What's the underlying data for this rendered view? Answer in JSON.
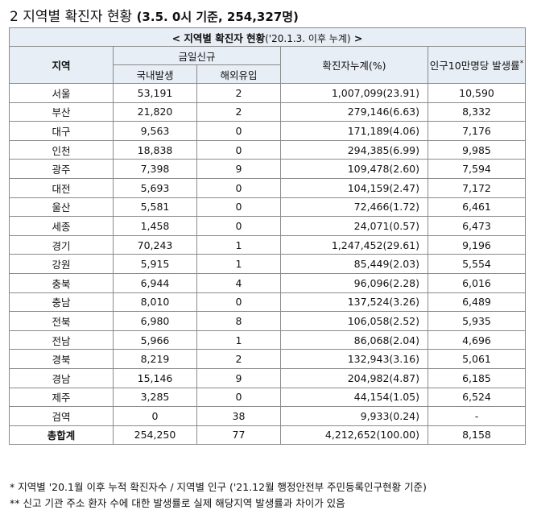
{
  "title": {
    "number": "2",
    "text": "지역별 확진자 현황",
    "basis": "(3.5. 0시 기준, 254,327명)"
  },
  "table": {
    "banner": "< 지역별 확진자 현황",
    "banner_small": "('20.1.3. 이후 누계)",
    "banner_end": ">",
    "headers": {
      "region": "지역",
      "today_new": "금일신규",
      "domestic": "국내발생",
      "overseas": "해외유입",
      "cumulative": "확진자누계(%)",
      "per100k": "인구10만명당 발생률",
      "per100k_mark": "*"
    },
    "rows": [
      {
        "region": "서울",
        "domestic": "53,191",
        "overseas": "2",
        "cumulative": "1,007,099(23.91)",
        "rate": "10,590"
      },
      {
        "region": "부산",
        "domestic": "21,820",
        "overseas": "2",
        "cumulative": "279,146(6.63)",
        "rate": "8,332"
      },
      {
        "region": "대구",
        "domestic": "9,563",
        "overseas": "0",
        "cumulative": "171,189(4.06)",
        "rate": "7,176"
      },
      {
        "region": "인천",
        "domestic": "18,838",
        "overseas": "0",
        "cumulative": "294,385(6.99)",
        "rate": "9,985"
      },
      {
        "region": "광주",
        "domestic": "7,398",
        "overseas": "9",
        "cumulative": "109,478(2.60)",
        "rate": "7,594"
      },
      {
        "region": "대전",
        "domestic": "5,693",
        "overseas": "0",
        "cumulative": "104,159(2.47)",
        "rate": "7,172"
      },
      {
        "region": "울산",
        "domestic": "5,581",
        "overseas": "0",
        "cumulative": "72,466(1.72)",
        "rate": "6,461"
      },
      {
        "region": "세종",
        "domestic": "1,458",
        "overseas": "0",
        "cumulative": "24,071(0.57)",
        "rate": "6,473"
      },
      {
        "region": "경기",
        "domestic": "70,243",
        "overseas": "1",
        "cumulative": "1,247,452(29.61)",
        "rate": "9,196"
      },
      {
        "region": "강원",
        "domestic": "5,915",
        "overseas": "1",
        "cumulative": "85,449(2.03)",
        "rate": "5,554"
      },
      {
        "region": "충북",
        "domestic": "6,944",
        "overseas": "4",
        "cumulative": "96,096(2.28)",
        "rate": "6,016"
      },
      {
        "region": "충남",
        "domestic": "8,010",
        "overseas": "0",
        "cumulative": "137,524(3.26)",
        "rate": "6,489"
      },
      {
        "region": "전북",
        "domestic": "6,980",
        "overseas": "8",
        "cumulative": "106,058(2.52)",
        "rate": "5,935"
      },
      {
        "region": "전남",
        "domestic": "5,966",
        "overseas": "1",
        "cumulative": "86,068(2.04)",
        "rate": "4,696"
      },
      {
        "region": "경북",
        "domestic": "8,219",
        "overseas": "2",
        "cumulative": "132,943(3.16)",
        "rate": "5,061"
      },
      {
        "region": "경남",
        "domestic": "15,146",
        "overseas": "9",
        "cumulative": "204,982(4.87)",
        "rate": "6,185"
      },
      {
        "region": "제주",
        "domestic": "3,285",
        "overseas": "0",
        "cumulative": "44,154(1.05)",
        "rate": "6,524"
      },
      {
        "region": "검역",
        "domestic": "0",
        "overseas": "38",
        "cumulative": "9,933(0.24)",
        "rate": "-"
      }
    ],
    "total": {
      "region": "총합계",
      "domestic": "254,250",
      "overseas": "77",
      "cumulative": "4,212,652(100.00)",
      "rate": "8,158"
    }
  },
  "footnotes": [
    "* 지역별 '20.1월 이후 누적 확진자수 / 지역별 인구 ('21.12월 행정안전부 주민등록인구현황 기준)",
    "** 신고 기관 주소 환자 수에 대한 발생률로 실제 해당지역 발생률과 차이가 있음"
  ]
}
